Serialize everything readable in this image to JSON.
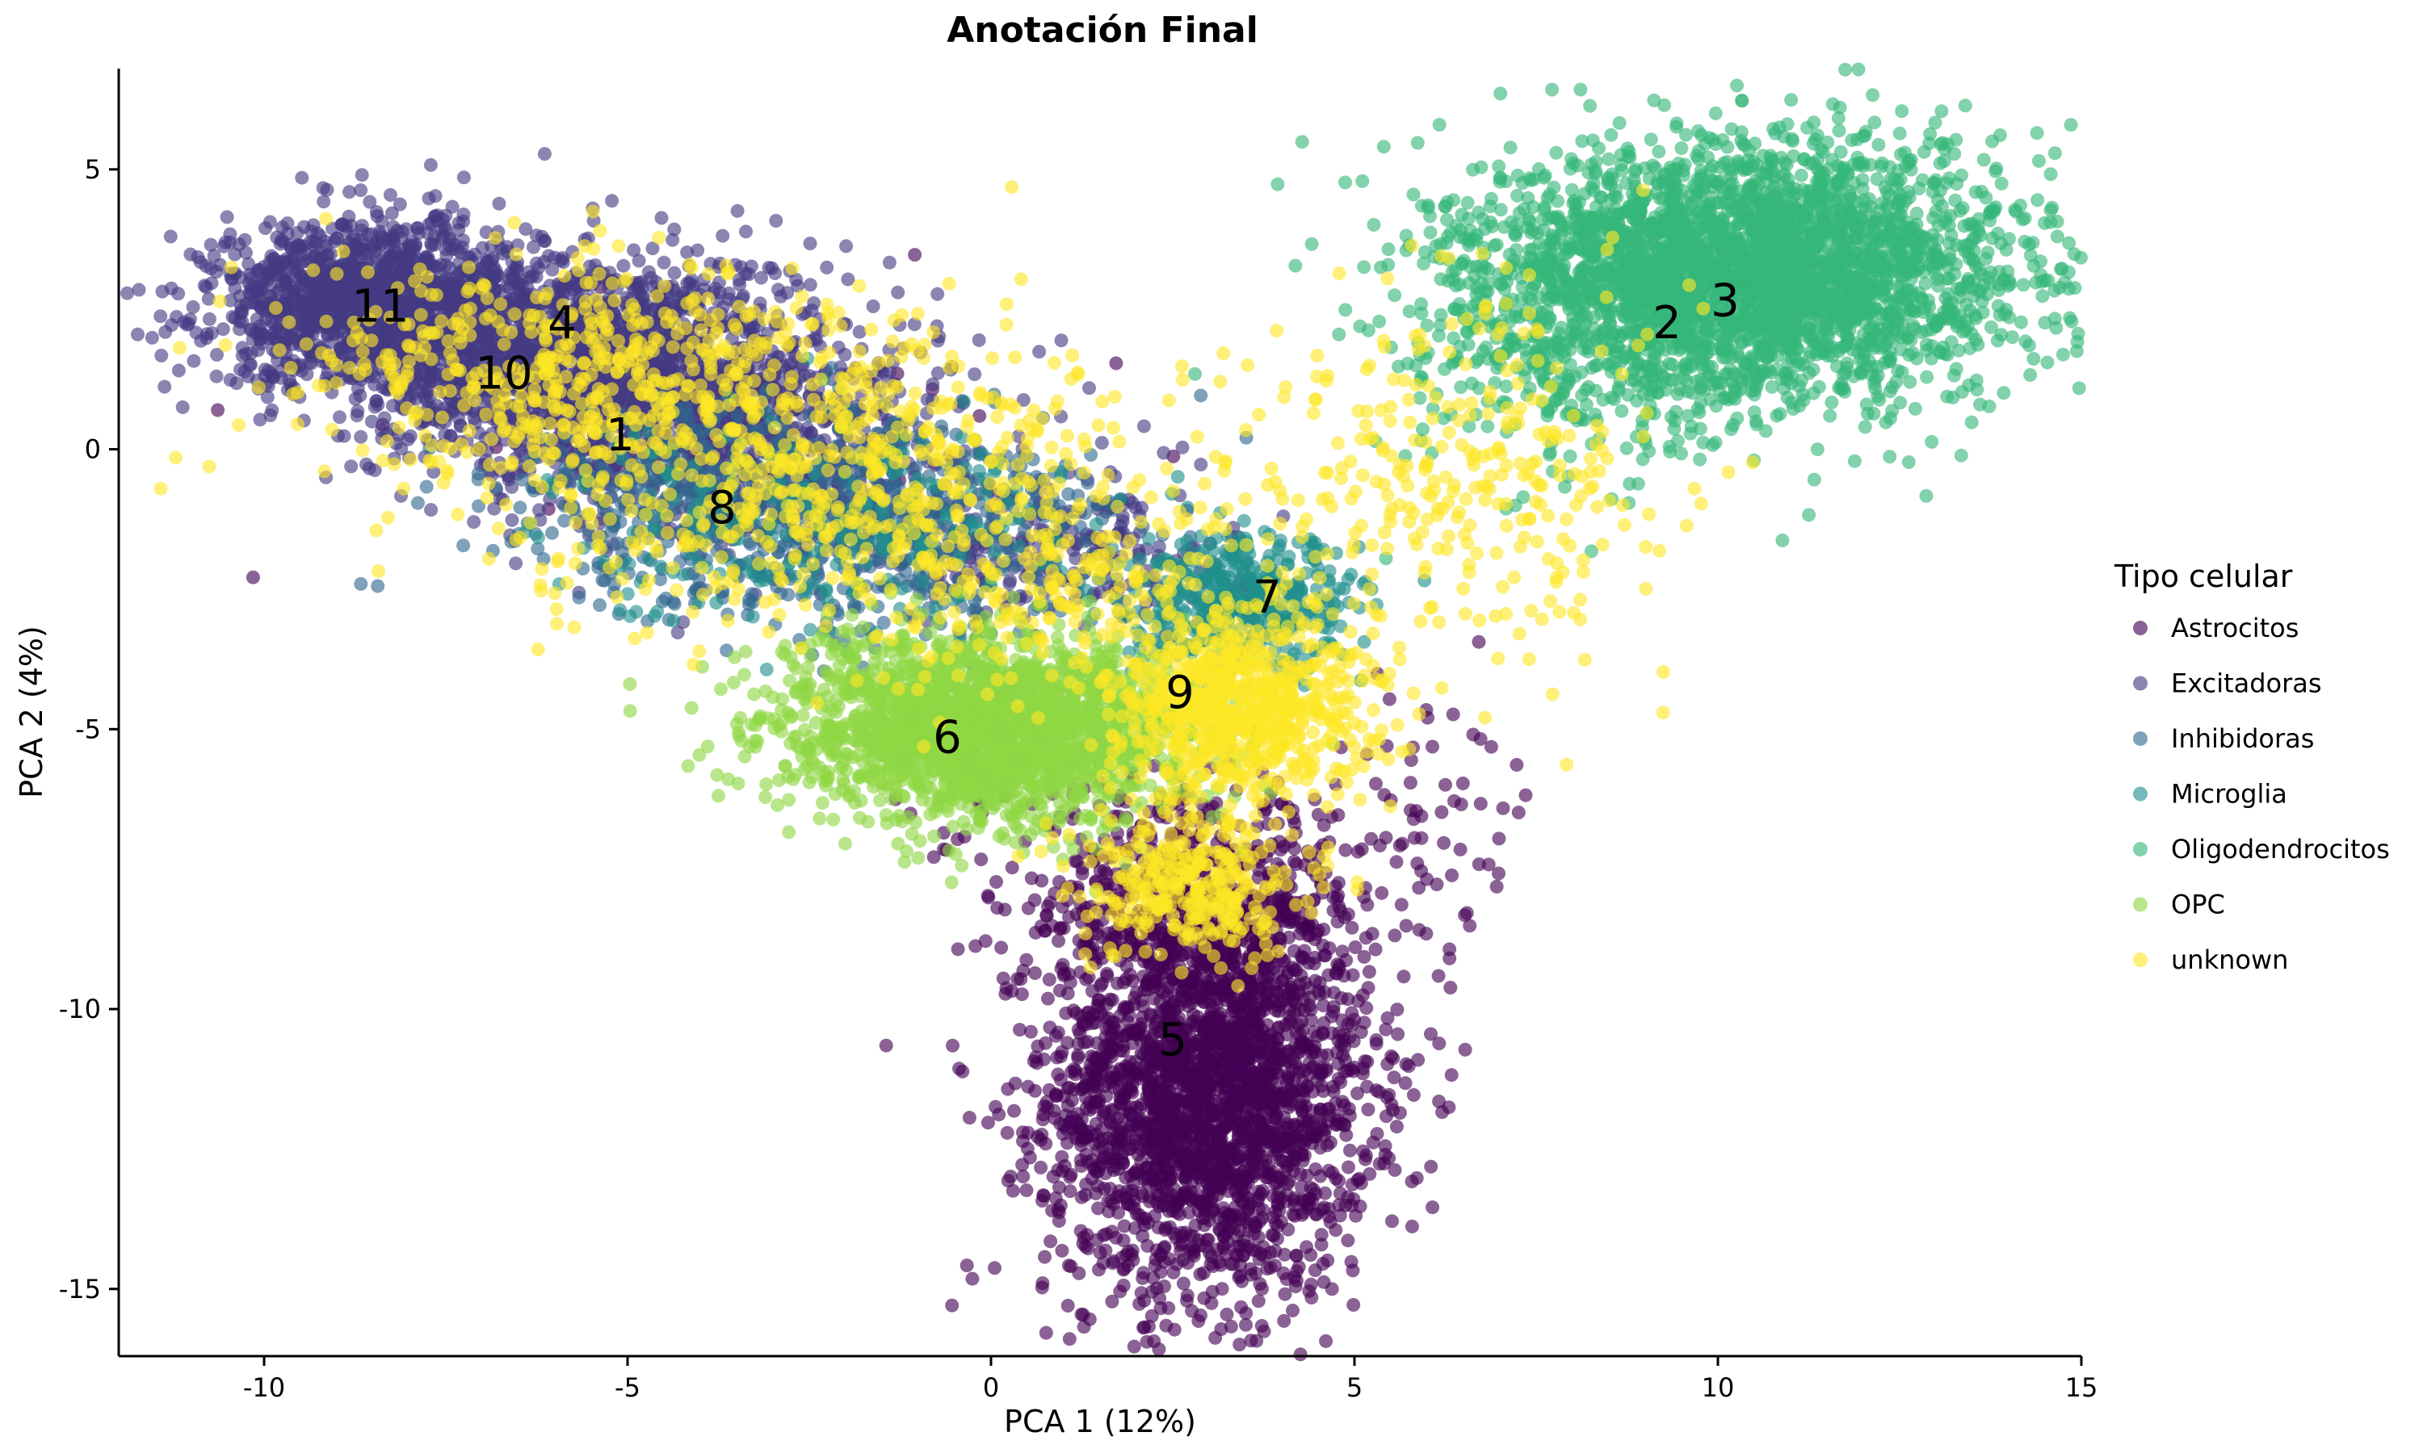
{
  "chart_data": {
    "type": "scatter",
    "title": "Anotación Final",
    "xlabel": "PCA 1 (12%)",
    "ylabel": "PCA 2 (4%)",
    "xlim": [
      -12,
      15
    ],
    "ylim": [
      -16.2,
      6.8
    ],
    "xticks": [
      -10,
      -5,
      0,
      5,
      10,
      15
    ],
    "yticks": [
      5,
      0,
      -5,
      -10,
      -15
    ],
    "xtick_labels": [
      "-10",
      "-5",
      "0",
      "5",
      "10",
      "15"
    ],
    "ytick_labels": [
      "5",
      "0",
      "-5",
      "-10",
      "-15"
    ],
    "grid": false,
    "legend_placement": "right",
    "legend_title": "Tipo celular",
    "series": [
      {
        "name": "Astrocitos",
        "color": "#440154",
        "clouds": [
          {
            "center": [
              3.0,
              -11.5
            ],
            "sd": [
              1.1,
              1.8
            ],
            "n": 2600
          },
          {
            "center": [
              2.8,
              -8.0
            ],
            "sd": [
              1.3,
              0.9
            ],
            "n": 500
          },
          {
            "center": [
              6.0,
              -6.5
            ],
            "sd": [
              0.8,
              1.2
            ],
            "n": 60
          },
          {
            "center": [
              0.5,
              -6.0
            ],
            "sd": [
              1.2,
              0.6
            ],
            "n": 40
          },
          {
            "center": [
              -4.0,
              0.5
            ],
            "sd": [
              2.5,
              1.2
            ],
            "n": 25
          }
        ]
      },
      {
        "name": "Excitadoras",
        "color": "#443a83",
        "clouds": [
          {
            "center": [
              -8.5,
              2.6
            ],
            "sd": [
              1.1,
              0.75
            ],
            "n": 1400
          },
          {
            "center": [
              -5.5,
              1.5
            ],
            "sd": [
              1.5,
              1.0
            ],
            "n": 1800
          },
          {
            "center": [
              -3.0,
              0.0
            ],
            "sd": [
              1.4,
              1.0
            ],
            "n": 600
          },
          {
            "center": [
              1.0,
              -1.8
            ],
            "sd": [
              1.2,
              0.7
            ],
            "n": 250
          }
        ]
      },
      {
        "name": "Inhibidoras",
        "color": "#31688e",
        "clouds": [
          {
            "center": [
              -3.5,
              -1.0
            ],
            "sd": [
              1.6,
              0.9
            ],
            "n": 500
          },
          {
            "center": [
              -1.0,
              -1.5
            ],
            "sd": [
              1.4,
              1.0
            ],
            "n": 350
          }
        ]
      },
      {
        "name": "Microglia",
        "color": "#21908d",
        "clouds": [
          {
            "center": [
              3.5,
              -2.8
            ],
            "sd": [
              0.8,
              0.6
            ],
            "n": 450
          },
          {
            "center": [
              -2.5,
              -1.2
            ],
            "sd": [
              1.8,
              0.9
            ],
            "n": 250
          }
        ]
      },
      {
        "name": "Oligodendrocitos",
        "color": "#35b779",
        "clouds": [
          {
            "center": [
              10.5,
              3.2
            ],
            "sd": [
              1.8,
              1.1
            ],
            "n": 3200
          },
          {
            "center": [
              8.0,
              1.8
            ],
            "sd": [
              1.4,
              1.3
            ],
            "n": 350
          }
        ]
      },
      {
        "name": "OPC",
        "color": "#8fd744",
        "clouds": [
          {
            "center": [
              0.0,
              -5.0
            ],
            "sd": [
              1.4,
              0.8
            ],
            "n": 2300
          }
        ]
      },
      {
        "name": "unknown",
        "color": "#fde725",
        "clouds": [
          {
            "center": [
              3.5,
              -4.6
            ],
            "sd": [
              0.9,
              0.8
            ],
            "n": 700
          },
          {
            "center": [
              2.8,
              -7.8
            ],
            "sd": [
              0.8,
              0.6
            ],
            "n": 350
          },
          {
            "center": [
              -2.5,
              -0.5
            ],
            "sd": [
              2.2,
              1.4
            ],
            "n": 700
          },
          {
            "center": [
              -6.0,
              1.5
            ],
            "sd": [
              2.0,
              1.0
            ],
            "n": 500
          },
          {
            "center": [
              6.5,
              -0.5
            ],
            "sd": [
              1.4,
              1.8
            ],
            "n": 300
          },
          {
            "center": [
              1.5,
              -2.5
            ],
            "sd": [
              1.6,
              1.2
            ],
            "n": 250
          }
        ]
      }
    ],
    "cluster_labels": [
      {
        "text": "11",
        "x": -8.4,
        "y": 2.5
      },
      {
        "text": "4",
        "x": -5.9,
        "y": 2.2
      },
      {
        "text": "10",
        "x": -6.7,
        "y": 1.3
      },
      {
        "text": "1",
        "x": -5.1,
        "y": 0.2
      },
      {
        "text": "8",
        "x": -3.7,
        "y": -1.1
      },
      {
        "text": "2",
        "x": 9.3,
        "y": 2.2
      },
      {
        "text": "3",
        "x": 10.1,
        "y": 2.6
      },
      {
        "text": "7",
        "x": 3.8,
        "y": -2.7
      },
      {
        "text": "9",
        "x": 2.6,
        "y": -4.4
      },
      {
        "text": "6",
        "x": -0.6,
        "y": -5.2
      },
      {
        "text": "5",
        "x": 2.5,
        "y": -10.6
      }
    ]
  }
}
